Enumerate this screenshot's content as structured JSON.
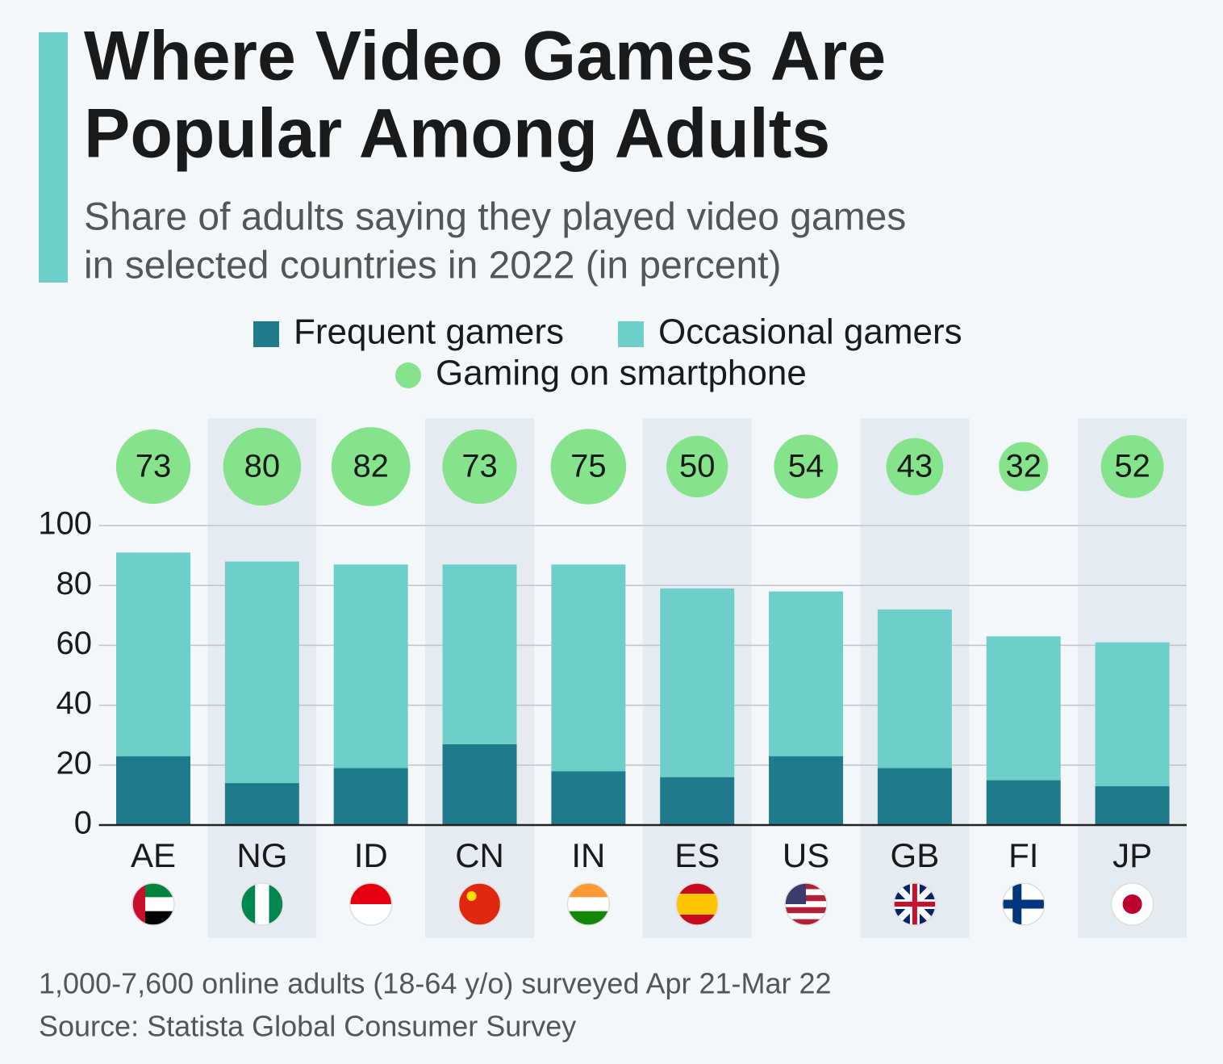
{
  "chart_data": {
    "type": "bar",
    "title": [
      "Where Video Games Are",
      "Popular Among Adults"
    ],
    "subtitle": [
      "Share of adults saying they played video games",
      "in selected countries in 2022 (in percent)"
    ],
    "categories": [
      "AE",
      "NG",
      "ID",
      "CN",
      "IN",
      "ES",
      "US",
      "GB",
      "FI",
      "JP"
    ],
    "series": [
      {
        "name": "Frequent gamers",
        "color": "#1f7a8c",
        "values": [
          23,
          14,
          19,
          27,
          18,
          16,
          23,
          19,
          15,
          13
        ]
      },
      {
        "name": "Occasional gamers",
        "color": "#6ecfca",
        "values": [
          68,
          74,
          68,
          60,
          69,
          63,
          55,
          53,
          48,
          48
        ]
      }
    ],
    "bubbles": {
      "name": "Gaming on smartphone",
      "color": "#84e38b",
      "values": [
        73,
        80,
        82,
        73,
        75,
        50,
        54,
        43,
        32,
        52
      ]
    },
    "stacked": true,
    "ylim": [
      0,
      100
    ],
    "yticks": [
      0,
      20,
      40,
      60,
      80,
      100
    ],
    "grid": true,
    "note": "1,000-7,600 online adults (18-64 y/o) surveyed Apr 21-Mar 22",
    "source": "Source: Statista Global Consumer Survey"
  }
}
